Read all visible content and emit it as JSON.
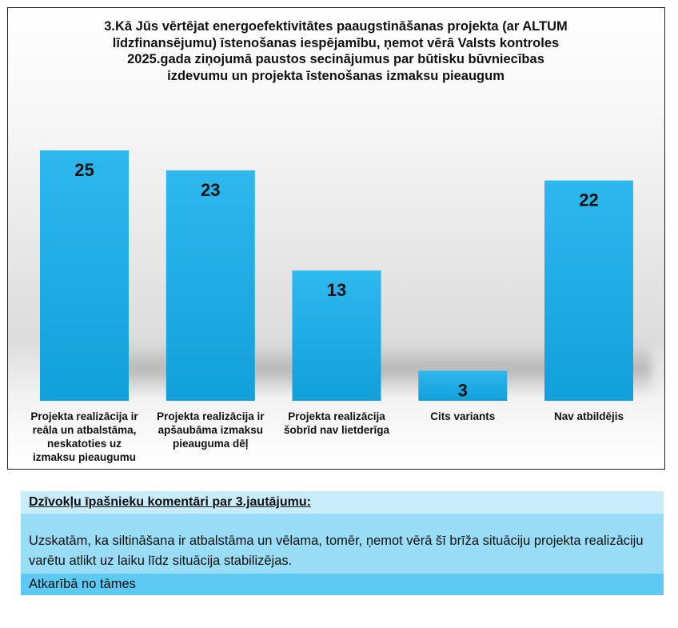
{
  "chart_data": {
    "type": "bar",
    "title": "3.Kā Jūs vērtējat energoefektivitātes paaugstināšanas projekta (ar ALTUM līdzfinansējumu) īstenošanas iespējamību, ņemot vērā Valsts kontroles 2025.gada ziņojumā paustos secinājumus par būtisku būvniecības izdevumu un projekta īstenošanas izmaksu pieaugum",
    "title_lines": [
      "3.Kā Jūs vērtējat energoefektivitātes paaugstināšanas projekta (ar ALTUM",
      "līdzfinansējumu) īstenošanas iespējamību, ņemot vērā Valsts kontroles",
      "2025.gada ziņojumā paustos secinājumus par būtisku būvniecības",
      "izdevumu un projekta īstenošanas izmaksu pieaugum"
    ],
    "categories": [
      "Projekta realizācija ir reāla un atbalstāma, neskatoties uz izmaksu pieaugumu",
      "Projekta realizācija ir apšaubāma izmaksu pieauguma dēļ",
      "Projekta realizācija šobrīd nav lietderīga",
      "Cits variants",
      "Nav atbildējis"
    ],
    "category_lines": [
      [
        "Projekta realizācija ir",
        "reāla un atbalstāma,",
        "neskatoties uz",
        "izmaksu pieaugumu"
      ],
      [
        "Projekta realizācija ir",
        "apšaubāma izmaksu",
        "pieauguma dēļ"
      ],
      [
        "Projekta realizācija",
        "šobrīd nav lietderīga"
      ],
      [
        "Cits variants"
      ],
      [
        "Nav atbildējis"
      ]
    ],
    "values": [
      25,
      23,
      13,
      3,
      22
    ],
    "data_labels": [
      "25",
      "23",
      "13",
      "3",
      "22"
    ],
    "xlabel": "",
    "ylabel": "",
    "ylim": [
      0,
      25
    ],
    "grid": false,
    "legend": "none",
    "bar_color": "#29b3ea",
    "bar_color_dark": "#14a2dc"
  },
  "comments": {
    "heading": "Dzīvokļu īpašnieku komentāri par 3.jautājumu:",
    "items": [
      "Uzskatām, ka siltināšana ir atbalstāma un vēlama, tomēr, ņemot vērā šī brīža situāciju projekta realizāciju varētu atlikt uz laiku līdz situācija stabilizējas.",
      "Atkarībā no tāmes"
    ]
  }
}
